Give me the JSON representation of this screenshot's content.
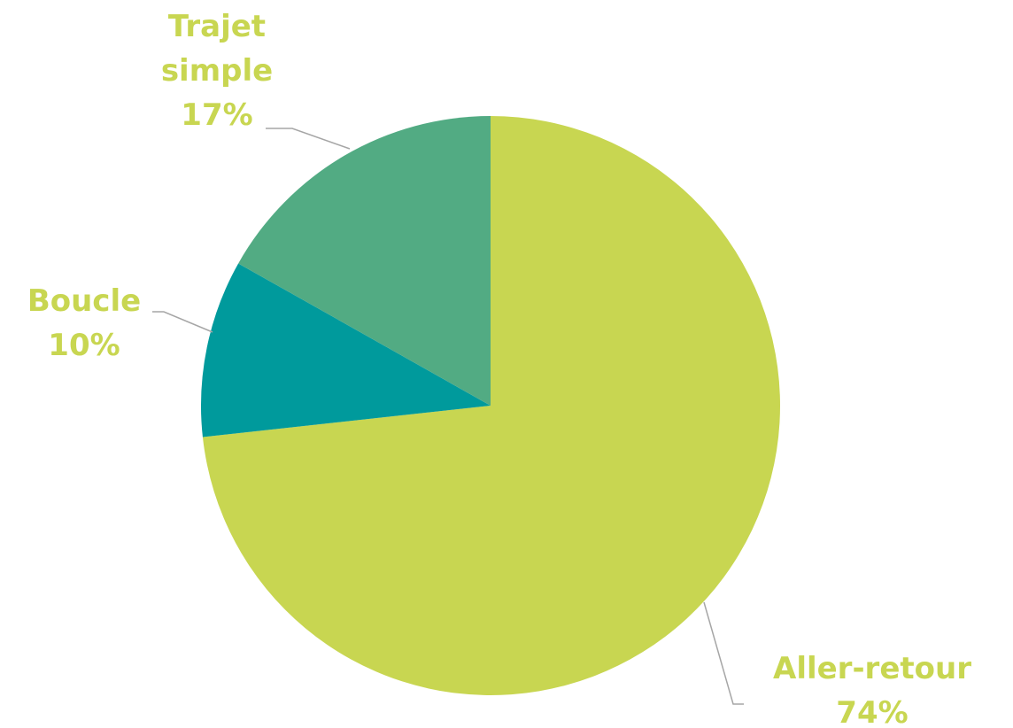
{
  "chart_data": {
    "type": "pie",
    "categories": [
      "Aller-retour",
      "Boucle",
      "Trajet simple"
    ],
    "values": [
      74,
      10,
      17
    ],
    "value_labels": [
      "74%",
      "10%",
      "17%"
    ],
    "colors": [
      "#c8d651",
      "#009a9c",
      "#52ab83"
    ],
    "label_color": "#c8d651"
  }
}
